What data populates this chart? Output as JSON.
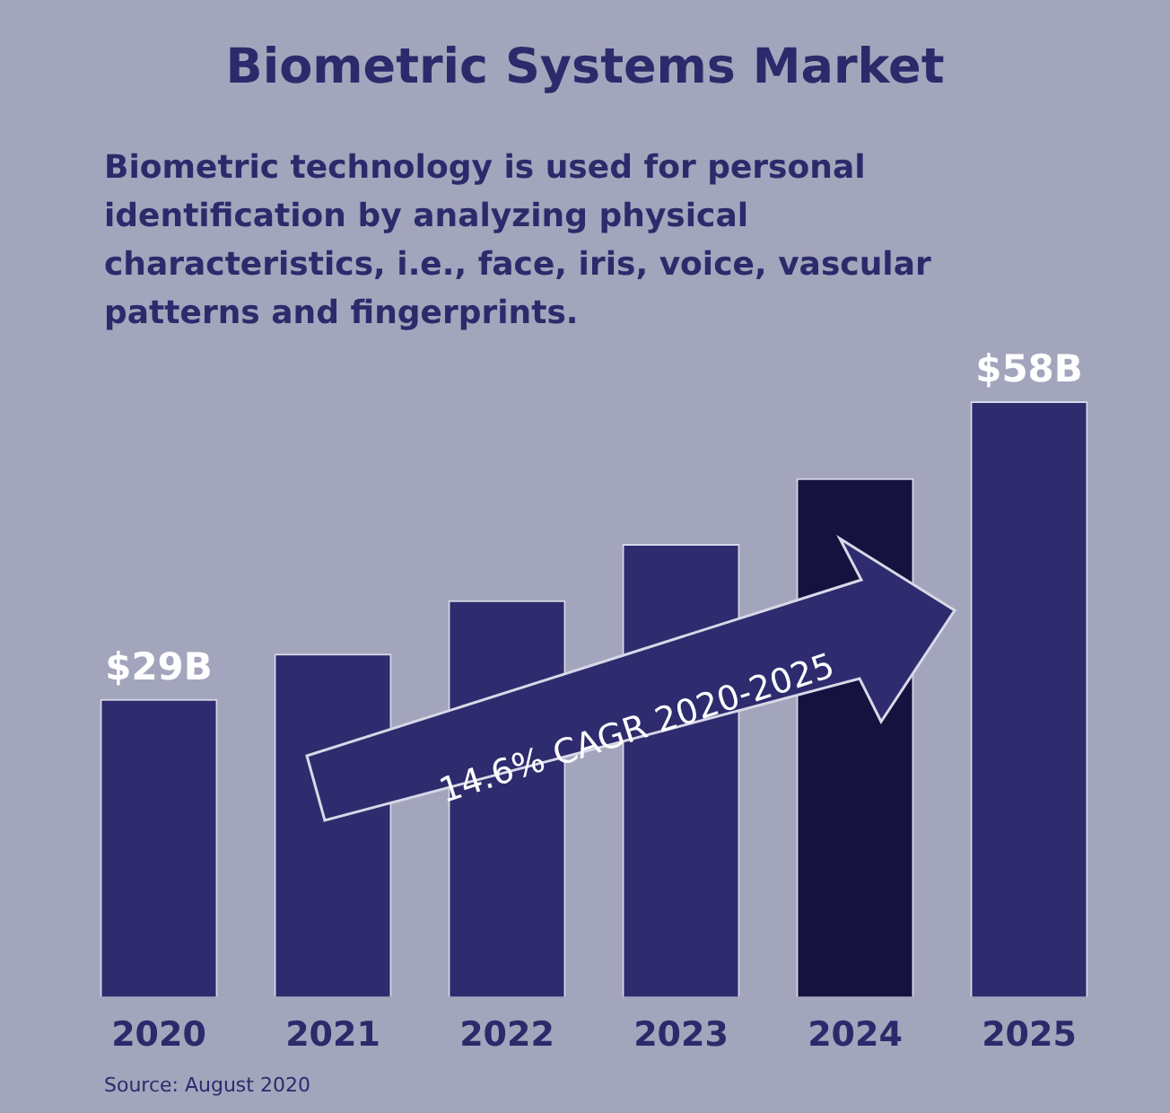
{
  "chart_data": {
    "type": "bar",
    "title": "Biometric Systems Market",
    "subtitle": "Biometric technology is used for personal identification by analyzing physical characteristics, i.e., face, iris, voice, vascular patterns and fingerprints.",
    "categories": [
      "2020",
      "2021",
      "2022",
      "2023",
      "2024",
      "2025"
    ],
    "values": [
      29,
      33.4,
      38.6,
      44.1,
      50.5,
      58
    ],
    "value_labels": [
      "$29B",
      null,
      null,
      null,
      null,
      "$58B"
    ],
    "colors": [
      "#2e2b6e",
      "#2e2b6e",
      "#2e2b6e",
      "#2e2b6e",
      "#16123f",
      "#2e2b6e"
    ],
    "annotations": [
      "14.6% CAGR 2020-2025",
      "Source: August 2020"
    ]
  }
}
